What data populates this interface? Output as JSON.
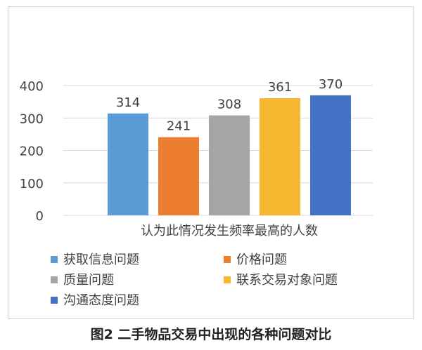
{
  "chart_data": {
    "type": "bar",
    "xlabel": "认为此情况发生频率最高的人数",
    "ylabel": "",
    "ylim": [
      0,
      400
    ],
    "yticks": [
      0,
      100,
      200,
      300,
      400
    ],
    "grid": true,
    "legend_position": "bottom",
    "categories": [
      "认为此情况发生频率最高的人数"
    ],
    "series": [
      {
        "name": "获取信息问题",
        "values": [
          314
        ],
        "color": "#5B9BD5"
      },
      {
        "name": "价格问题",
        "values": [
          241
        ],
        "color": "#ED7D31"
      },
      {
        "name": "质量问题",
        "values": [
          308
        ],
        "color": "#A5A5A5"
      },
      {
        "name": "联系交易对象问题",
        "values": [
          361
        ],
        "color": "#F7B731"
      },
      {
        "name": "沟通态度问题",
        "values": [
          370
        ],
        "color": "#4472C4"
      }
    ]
  },
  "caption": "图2  二手物品交易中出现的各种问题对比"
}
